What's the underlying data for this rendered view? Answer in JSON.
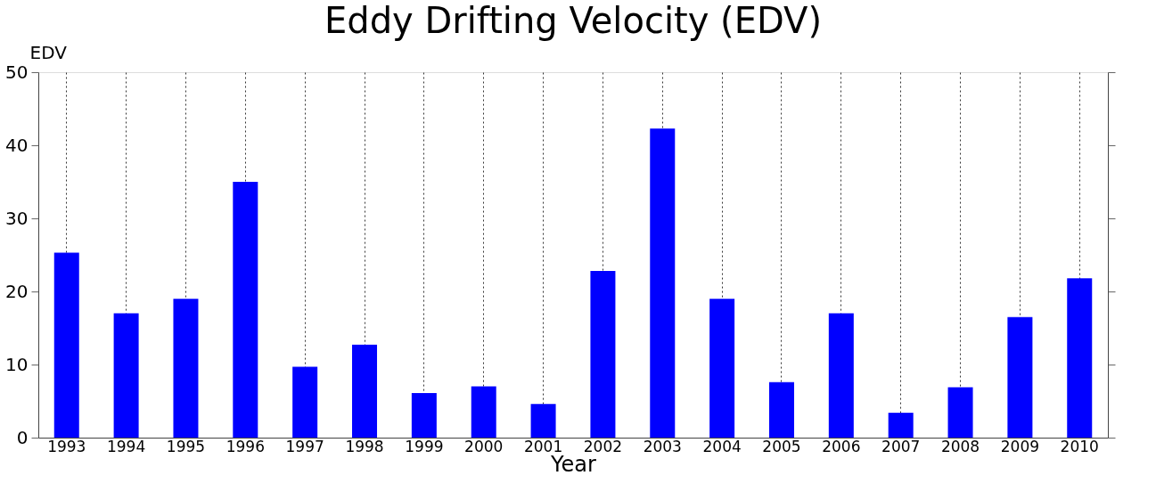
{
  "chart_data": {
    "type": "bar",
    "title": "Eddy Drifting Velocity (EDV)",
    "xlabel": "Year",
    "ylabel": "EDV",
    "categories": [
      "1993",
      "1994",
      "1995",
      "1996",
      "1997",
      "1998",
      "1999",
      "2000",
      "2001",
      "2002",
      "2003",
      "2004",
      "2005",
      "2006",
      "2007",
      "2008",
      "2009",
      "2010"
    ],
    "values": [
      25.3,
      17.0,
      19.0,
      35.0,
      9.7,
      12.7,
      6.1,
      7.0,
      4.6,
      22.8,
      42.3,
      19.0,
      7.6,
      17.0,
      3.4,
      6.9,
      16.5,
      21.8
    ],
    "color": "#0000ff",
    "ylim": [
      0,
      50
    ],
    "yticks": [
      0,
      10,
      20,
      30,
      40,
      50
    ],
    "grid": "x"
  }
}
